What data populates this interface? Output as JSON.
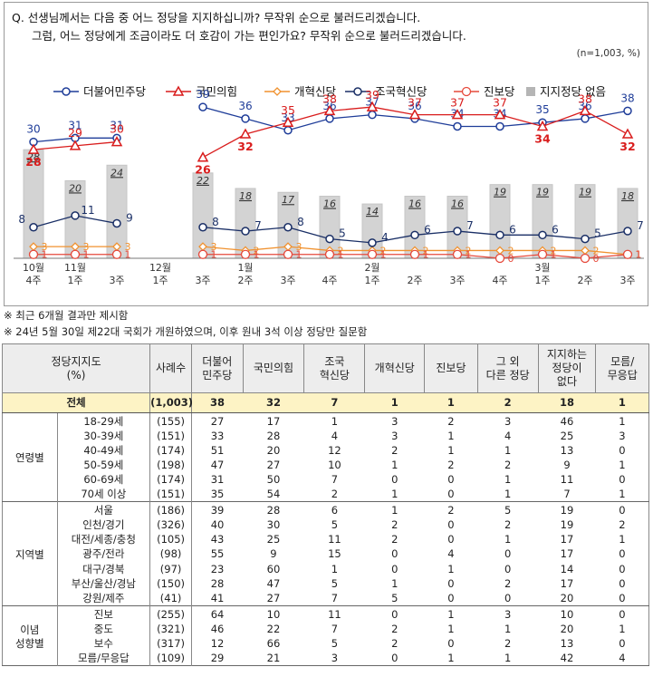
{
  "question": {
    "line1": "Q. 선생님께서는 다음 중 어느 정당을 지지하십니까? 무작위 순으로 불러드리겠습니다.",
    "line2": "그럼, 어느 정당에게 조금이라도 더 호감이 가는 편인가요? 무작위 순으로 불러드리겠습니다."
  },
  "sample_note": "(n=1,003,  %)",
  "chart_data": {
    "type": "line",
    "x_labels": [
      [
        "10월",
        "4주"
      ],
      [
        "11월",
        "1주"
      ],
      [
        "",
        "3주"
      ],
      [
        "12월",
        "1주"
      ],
      [
        "",
        "3주"
      ],
      [
        "1월",
        "2주"
      ],
      [
        "",
        "3주"
      ],
      [
        "",
        "4주"
      ],
      [
        "2월",
        "1주"
      ],
      [
        "",
        "2주"
      ],
      [
        "",
        "3주"
      ],
      [
        "",
        "4주"
      ],
      [
        "3월",
        "1주"
      ],
      [
        "",
        "2주"
      ],
      [
        "",
        "3주"
      ]
    ],
    "series": [
      {
        "name": "더불어민주당",
        "color": "#1f3d99",
        "marker": "circle",
        "label_pos": "above",
        "values": [
          30,
          31,
          31,
          null,
          39,
          36,
          33,
          36,
          37,
          36,
          34,
          34,
          35,
          36,
          38
        ]
      },
      {
        "name": "국민의힘",
        "color": "#d91c1c",
        "marker": "triangle",
        "label_pos": "mixed",
        "values": [
          28,
          29,
          30,
          null,
          26,
          32,
          35,
          38,
          39,
          37,
          37,
          37,
          34,
          38,
          32
        ]
      },
      {
        "name": "개혁신당",
        "color": "#f0912e",
        "marker": "diamond",
        "label_pos": "right",
        "values": [
          3,
          3,
          3,
          null,
          3,
          2,
          3,
          2,
          2,
          2,
          2,
          2,
          2,
          2,
          1
        ]
      },
      {
        "name": "조국혁신당",
        "color": "#1a2f66",
        "marker": "circle",
        "label_pos": "left",
        "values": [
          8,
          11,
          9,
          null,
          8,
          7,
          8,
          5,
          4,
          6,
          7,
          6,
          6,
          5,
          7
        ]
      },
      {
        "name": "진보당",
        "color": "#e64a3c",
        "marker": "circle-open",
        "label_pos": "right",
        "values": [
          1,
          1,
          1,
          null,
          1,
          1,
          1,
          1,
          1,
          1,
          1,
          0,
          1,
          0,
          1
        ]
      }
    ],
    "bars": {
      "name": "지지정당 없음",
      "color": "#d3d3d3",
      "values": [
        28,
        20,
        24,
        null,
        22,
        18,
        17,
        16,
        14,
        16,
        16,
        19,
        19,
        19,
        18
      ]
    },
    "ylim": [
      0,
      45
    ]
  },
  "notes": {
    "n1": "※ 최근 6개월 결과만 제시함",
    "n2": "※ 24년 5월 30일 제22대 국회가 개원하였으며, 이후 원내 3석 이상 정당만 질문함"
  },
  "table": {
    "headers": [
      "정당지지도\n(%)",
      "사례수",
      "더불어\n민주당",
      "국민의힘",
      "조국\n혁신당",
      "개혁신당",
      "진보당",
      "그 외\n다른 정당",
      "지지하는\n정당이\n없다",
      "모름/\n무응답"
    ],
    "total": {
      "label": "전체",
      "values": [
        "(1,003)",
        "38",
        "32",
        "7",
        "1",
        "1",
        "2",
        "18",
        "1"
      ]
    },
    "groups": [
      {
        "label": "연령별",
        "rows": [
          {
            "name": "18-29세",
            "values": [
              "(155)",
              "27",
              "17",
              "1",
              "3",
              "2",
              "3",
              "46",
              "1"
            ]
          },
          {
            "name": "30-39세",
            "values": [
              "(151)",
              "33",
              "28",
              "4",
              "3",
              "1",
              "4",
              "25",
              "3"
            ]
          },
          {
            "name": "40-49세",
            "values": [
              "(174)",
              "51",
              "20",
              "12",
              "2",
              "1",
              "1",
              "13",
              "0"
            ]
          },
          {
            "name": "50-59세",
            "values": [
              "(198)",
              "47",
              "27",
              "10",
              "1",
              "2",
              "2",
              "9",
              "1"
            ]
          },
          {
            "name": "60-69세",
            "values": [
              "(174)",
              "31",
              "50",
              "7",
              "0",
              "0",
              "1",
              "11",
              "0"
            ]
          },
          {
            "name": "70세 이상",
            "values": [
              "(151)",
              "35",
              "54",
              "2",
              "1",
              "0",
              "1",
              "7",
              "1"
            ]
          }
        ]
      },
      {
        "label": "지역별",
        "rows": [
          {
            "name": "서울",
            "values": [
              "(186)",
              "39",
              "28",
              "6",
              "1",
              "2",
              "5",
              "19",
              "0"
            ]
          },
          {
            "name": "인천/경기",
            "values": [
              "(326)",
              "40",
              "30",
              "5",
              "2",
              "0",
              "2",
              "19",
              "2"
            ]
          },
          {
            "name": "대전/세종/충청",
            "values": [
              "(105)",
              "43",
              "25",
              "11",
              "2",
              "0",
              "1",
              "17",
              "1"
            ]
          },
          {
            "name": "광주/전라",
            "values": [
              "(98)",
              "55",
              "9",
              "15",
              "0",
              "4",
              "0",
              "17",
              "0"
            ]
          },
          {
            "name": "대구/경북",
            "values": [
              "(97)",
              "23",
              "60",
              "1",
              "0",
              "1",
              "0",
              "14",
              "0"
            ]
          },
          {
            "name": "부산/울산/경남",
            "values": [
              "(150)",
              "28",
              "47",
              "5",
              "1",
              "0",
              "2",
              "17",
              "0"
            ]
          },
          {
            "name": "강원/제주",
            "values": [
              "(41)",
              "41",
              "27",
              "7",
              "5",
              "0",
              "0",
              "20",
              "0"
            ]
          }
        ]
      },
      {
        "label": "이념\n성향별",
        "rows": [
          {
            "name": "진보",
            "values": [
              "(255)",
              "64",
              "10",
              "11",
              "0",
              "1",
              "3",
              "10",
              "0"
            ]
          },
          {
            "name": "중도",
            "values": [
              "(321)",
              "46",
              "22",
              "7",
              "2",
              "1",
              "1",
              "20",
              "1"
            ]
          },
          {
            "name": "보수",
            "values": [
              "(317)",
              "12",
              "66",
              "5",
              "2",
              "0",
              "2",
              "13",
              "0"
            ]
          },
          {
            "name": "모름/무응답",
            "values": [
              "(109)",
              "29",
              "21",
              "3",
              "0",
              "1",
              "1",
              "42",
              "4"
            ]
          }
        ]
      }
    ]
  }
}
